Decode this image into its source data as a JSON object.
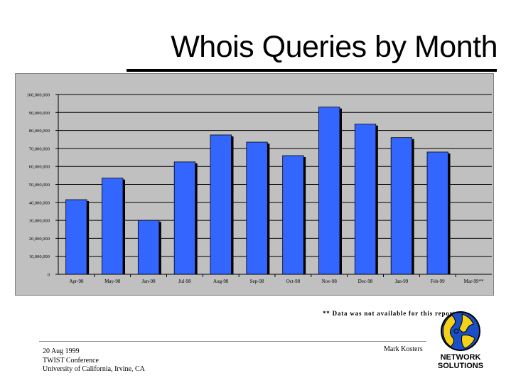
{
  "slide": {
    "title": "Whois Queries by Month",
    "footnote": "** Data was not available for this report",
    "presenter": "Mark Kosters",
    "footer_lines": [
      "20 Aug 1999",
      "TWIST Conference",
      "University of California, Irvine, CA"
    ],
    "logo_text_line1": "NETWORK",
    "logo_text_line2": "SOLUTIONS"
  },
  "colors": {
    "bar": "#3366ff",
    "bar_shadow": "#000000",
    "plot_bg": "#c0c0c0",
    "gridline": "#000000",
    "logo_blue": "#1a4fc8",
    "logo_yellow": "#f5d21a"
  },
  "chart_data": {
    "type": "bar",
    "categories": [
      "Apr-98",
      "May-98",
      "Jun-98",
      "Jul-98",
      "Aug-98",
      "Sep-98",
      "Oct-98",
      "Nov-98",
      "Dec-98",
      "Jan-99",
      "Feb-99",
      "Mar-99**"
    ],
    "values": [
      41500000,
      53500000,
      30000000,
      62500000,
      77500000,
      73500000,
      66000000,
      93000000,
      83500000,
      76000000,
      68000000,
      null
    ],
    "ylim": [
      0,
      100000000
    ],
    "yticks": [
      0,
      10000000,
      20000000,
      30000000,
      40000000,
      50000000,
      60000000,
      70000000,
      80000000,
      90000000,
      100000000
    ],
    "ytick_labels": [
      "0",
      "10,000,000",
      "20,000,000",
      "30,000,000",
      "40,000,000",
      "50,000,000",
      "60,000,000",
      "70,000,000",
      "80,000,000",
      "90,000,000",
      "100,000,000"
    ],
    "grid": true,
    "legend": "none"
  }
}
